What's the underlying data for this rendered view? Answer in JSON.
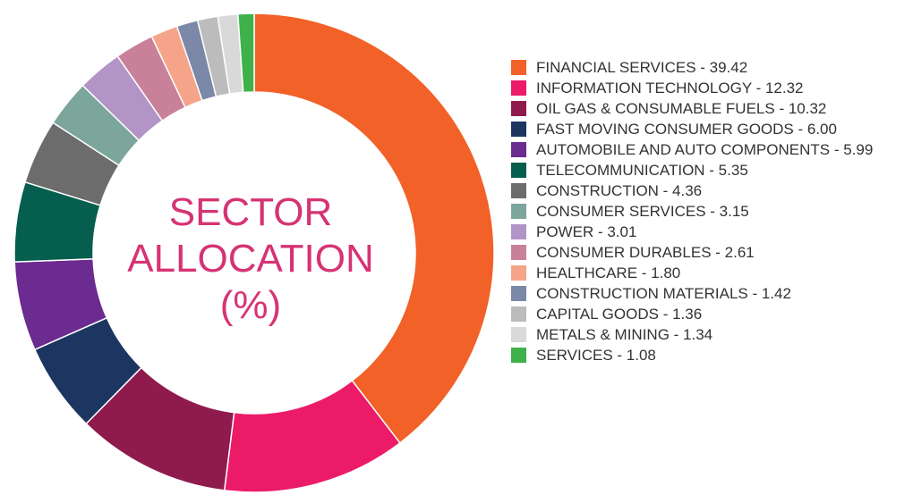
{
  "chart_data": {
    "type": "pie",
    "title": [
      "SECTOR",
      "ALLOCATION",
      "(%)"
    ],
    "legend_position": "right",
    "slices": [
      {
        "label": "FINANCIAL SERVICES - 39.42",
        "value": 39.42,
        "color": "#f26128"
      },
      {
        "label": "INFORMATION TECHNOLOGY - 12.32",
        "value": 12.32,
        "color": "#ec1b68"
      },
      {
        "label": "OIL GAS & CONSUMABLE FUELS - 10.32",
        "value": 10.32,
        "color": "#8f1a4e"
      },
      {
        "label": "FAST MOVING CONSUMER GOODS - 6.00",
        "value": 6.0,
        "color": "#1d3661"
      },
      {
        "label": "AUTOMOBILE AND AUTO COMPONENTS - 5.99",
        "value": 5.99,
        "color": "#6c2b90"
      },
      {
        "label": "TELECOMMUNICATION - 5.35",
        "value": 5.35,
        "color": "#065e4e"
      },
      {
        "label": "CONSTRUCTION - 4.36",
        "value": 4.36,
        "color": "#6c6c6c"
      },
      {
        "label": "CONSUMER SERVICES - 3.15",
        "value": 3.15,
        "color": "#7ca69c"
      },
      {
        "label": "POWER - 3.01",
        "value": 3.01,
        "color": "#b294c6"
      },
      {
        "label": "CONSUMER DURABLES - 2.61",
        "value": 2.61,
        "color": "#c98199"
      },
      {
        "label": "HEALTHCARE - 1.80",
        "value": 1.8,
        "color": "#f6a489"
      },
      {
        "label": "CONSTRUCTION MATERIALS - 1.42",
        "value": 1.42,
        "color": "#7b88a7"
      },
      {
        "label": "CAPITAL GOODS - 1.36",
        "value": 1.36,
        "color": "#bcbcbc"
      },
      {
        "label": "METALS & MINING - 1.34",
        "value": 1.34,
        "color": "#d9d9d9"
      },
      {
        "label": "SERVICES - 1.08",
        "value": 1.08,
        "color": "#3fb14b"
      }
    ]
  }
}
